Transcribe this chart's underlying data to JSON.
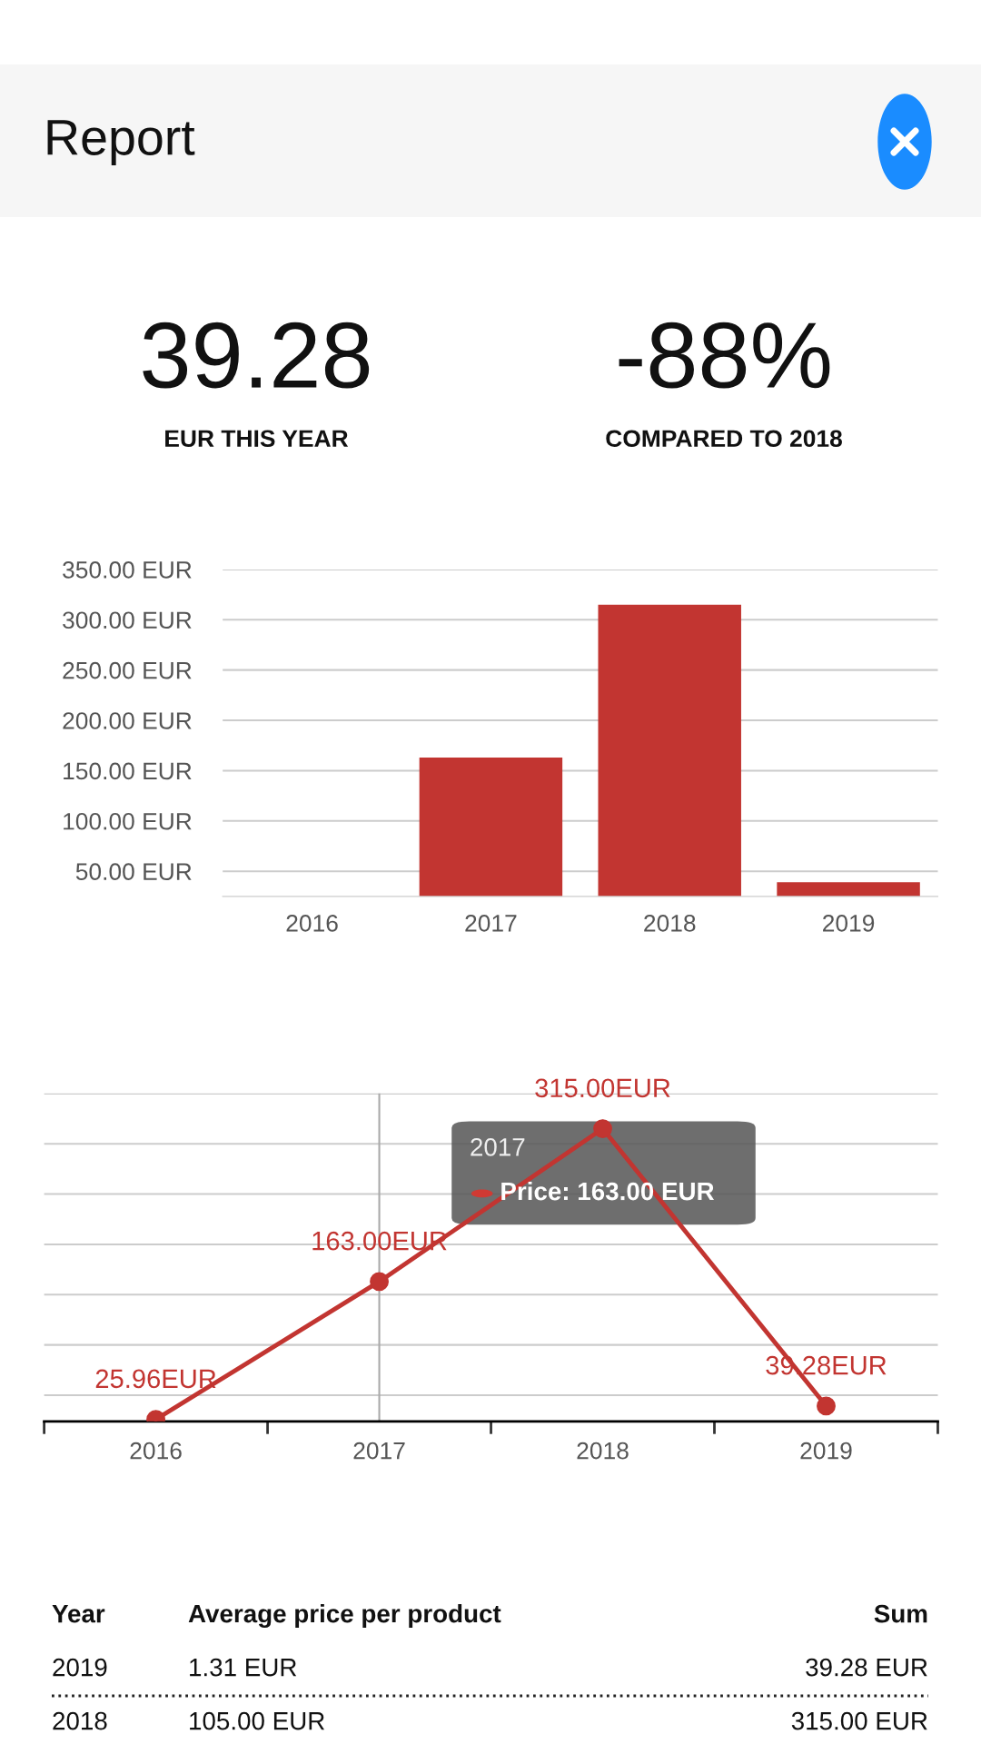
{
  "chart_data": [
    {
      "type": "other",
      "title": "Report",
      "annotations": [
        "39.28",
        "EUR THIS YEAR",
        "-88%",
        "COMPARED TO 2018"
      ]
    },
    {
      "type": "bar",
      "categories": [
        "2016",
        "2017",
        "2018",
        "2019"
      ],
      "values": [
        null,
        163,
        315,
        39
      ],
      "color": "#c23531",
      "ylim": [
        25,
        350
      ],
      "yticks": [
        {
          "value": 50,
          "label": "50.00 EUR"
        },
        {
          "value": 100,
          "label": "100.00 EUR"
        },
        {
          "value": 150,
          "label": "150.00 EUR"
        },
        {
          "value": 200,
          "label": "200.00 EUR"
        },
        {
          "value": 250,
          "label": "250.00 EUR"
        },
        {
          "value": 300,
          "label": "300.00 EUR"
        },
        {
          "value": 350,
          "label": "350.00 EUR"
        }
      ],
      "grid": "y"
    },
    {
      "type": "line",
      "categories": [
        "2016",
        "2017",
        "2018",
        "2019"
      ],
      "series": [
        {
          "color": "#c23531",
          "values": [
            25.96,
            163,
            315,
            39.28
          ],
          "value_labels": [
            "25.96EUR",
            "163.00EUR",
            "315.00EUR",
            "39.28EUR"
          ]
        }
      ],
      "ylim": [
        24,
        350
      ],
      "yticks": [
        {
          "value": 50,
          "label": null
        },
        {
          "value": 100,
          "label": null
        },
        {
          "value": 150,
          "label": null
        },
        {
          "value": 200,
          "label": null
        },
        {
          "value": 250,
          "label": null
        },
        {
          "value": 300,
          "label": null
        },
        {
          "value": 350,
          "label": null
        }
      ],
      "grid": "y",
      "marker": "circle",
      "line_style": "solid",
      "tick_labels": "x",
      "ref_lines": [
        {
          "axis": "x",
          "value": "2017",
          "color": "#aaaaaa"
        }
      ],
      "annotations": [
        "2017",
        "Price: 163.00 EUR"
      ]
    },
    {
      "type": "other",
      "annotations": [
        "Year",
        "Average price per product",
        "Sum",
        "2019",
        "1.31 EUR",
        "39.28 EUR",
        "2018",
        "105.00 EUR",
        "315.00 EUR"
      ]
    }
  ]
}
